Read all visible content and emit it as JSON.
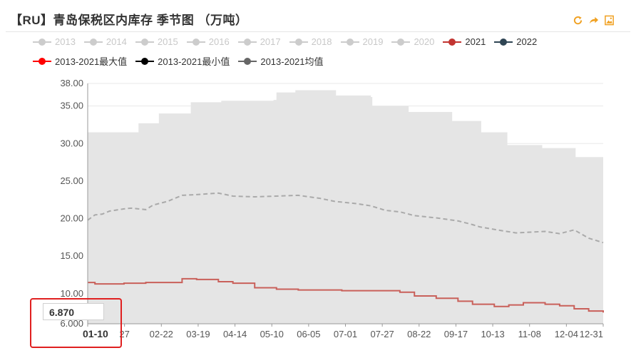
{
  "title": "【RU】青岛保税区内库存 季节图 （万吨）",
  "toolbar": {
    "refresh_icon": "refresh-icon",
    "share_icon": "share-icon",
    "download_icon": "image-download-icon"
  },
  "legend_row1": [
    {
      "label": "2013",
      "active": false,
      "color": "#cccccc"
    },
    {
      "label": "2014",
      "active": false,
      "color": "#cccccc"
    },
    {
      "label": "2015",
      "active": false,
      "color": "#cccccc"
    },
    {
      "label": "2016",
      "active": false,
      "color": "#cccccc"
    },
    {
      "label": "2017",
      "active": false,
      "color": "#cccccc"
    },
    {
      "label": "2018",
      "active": false,
      "color": "#cccccc"
    },
    {
      "label": "2019",
      "active": false,
      "color": "#cccccc"
    },
    {
      "label": "2020",
      "active": false,
      "color": "#cccccc"
    },
    {
      "label": "2021",
      "active": true,
      "color": "#c23531"
    },
    {
      "label": "2022",
      "active": true,
      "color": "#2f4554"
    }
  ],
  "legend_row2": [
    {
      "label": "2013-2021最大值",
      "active": true,
      "color": "#ff0000"
    },
    {
      "label": "2013-2021最小值",
      "active": true,
      "color": "#000000"
    },
    {
      "label": "2013-2021均值",
      "active": true,
      "color": "#666666"
    }
  ],
  "tooltip_value": "6.870",
  "chart_data": {
    "type": "area",
    "title": "【RU】青岛保税区内库存 季节图 （万吨）",
    "ylim": [
      6,
      38
    ],
    "y_ticks": [
      "6.000",
      "10.00",
      "15.00",
      "20.00",
      "25.00",
      "30.00",
      "35.00",
      "38.00"
    ],
    "y_tick_values": [
      6,
      10,
      15,
      20,
      25,
      30,
      35,
      38
    ],
    "x_ticks": [
      "01-10",
      "27",
      "02-22",
      "03-19",
      "04-14",
      "05-10",
      "06-05",
      "07-01",
      "07-27",
      "08-22",
      "09-17",
      "10-13",
      "11-08",
      "12-04",
      "12-31"
    ],
    "grid": true,
    "legend_position": "top",
    "colors": {
      "band": "#e5e5e5",
      "y2021": "#c9605a",
      "mean": "#aaaaaa"
    },
    "x_index": [
      0,
      1,
      2,
      3,
      4,
      5,
      6,
      7,
      8,
      9,
      10,
      11,
      12,
      13,
      14,
      15,
      16,
      17,
      18,
      19,
      20,
      21,
      22,
      23,
      24,
      25,
      26,
      27,
      28,
      29,
      30,
      31,
      32,
      33,
      34,
      35,
      36,
      37,
      38,
      39,
      40,
      41,
      42,
      43,
      44,
      45,
      46,
      47,
      48,
      49,
      50,
      51,
      52,
      53,
      54,
      55,
      56,
      57,
      58,
      59,
      60,
      61,
      62,
      63,
      64,
      65,
      66,
      67,
      68,
      69,
      70,
      71,
      72,
      73,
      74,
      75,
      76,
      77,
      78,
      79,
      80,
      81,
      82,
      83,
      84,
      85,
      86,
      87,
      88,
      89,
      90,
      91,
      92,
      93,
      94,
      95,
      96,
      97,
      98,
      99,
      100,
      101,
      102,
      103,
      104,
      105,
      106,
      107,
      108,
      109,
      110,
      111,
      112,
      113,
      114,
      115,
      116,
      117,
      118,
      119,
      120,
      121,
      122,
      123,
      124,
      125,
      126,
      127,
      128,
      129,
      130,
      131,
      132,
      133,
      134,
      135,
      136,
      137,
      138,
      139,
      140,
      141,
      142,
      143,
      144,
      145,
      146,
      147,
      148,
      149,
      150,
      151,
      152,
      153,
      154,
      155,
      156,
      157,
      158,
      159,
      160,
      161,
      162,
      163,
      164,
      165,
      166,
      167,
      168,
      169,
      170,
      171,
      172,
      173,
      174,
      175,
      176,
      177,
      178,
      179,
      180,
      181,
      182,
      183,
      184,
      185,
      186,
      187,
      188,
      189,
      190,
      191,
      192,
      193,
      194,
      195,
      196,
      197,
      198,
      199,
      200,
      201,
      202,
      203,
      204,
      205,
      206,
      207,
      208,
      209,
      210,
      211,
      212,
      213,
      214,
      215,
      216,
      217,
      218,
      219,
      220,
      221,
      222,
      223,
      224,
      225,
      226,
      227,
      228,
      229,
      230,
      231,
      232,
      233,
      234,
      235,
      236,
      237,
      238,
      239,
      240,
      241,
      242,
      243,
      244,
      245,
      246,
      247,
      248,
      249,
      250,
      251,
      252,
      253,
      254,
      255,
      256,
      257,
      258,
      259,
      260,
      261,
      262,
      263,
      264,
      265,
      266,
      267,
      268,
      269,
      270,
      271,
      272,
      273,
      274,
      275,
      276,
      277,
      278,
      279,
      280,
      281,
      282,
      283,
      284,
      285,
      286,
      287,
      288,
      289,
      290,
      291,
      292,
      293,
      294,
      295,
      296,
      297,
      298,
      299,
      300,
      301,
      302,
      303,
      304,
      305,
      306,
      307,
      308,
      309,
      310,
      311,
      312,
      313,
      314,
      315,
      316,
      317,
      318,
      319,
      320,
      321,
      322,
      323,
      324,
      325,
      326,
      327,
      328,
      329,
      330,
      331,
      332,
      333,
      334,
      335,
      336,
      337,
      338,
      339,
      340,
      341,
      342,
      343,
      344,
      345,
      346,
      347,
      348,
      349,
      350,
      351,
      352,
      353,
      354,
      355
    ],
    "max": [
      [
        0,
        31.5
      ],
      [
        14,
        31.5
      ],
      [
        15,
        31.5
      ],
      [
        35,
        32.7
      ],
      [
        48,
        32.7
      ],
      [
        49,
        34.0
      ],
      [
        70,
        34.0
      ],
      [
        71,
        35.5
      ],
      [
        91,
        35.5
      ],
      [
        92,
        35.7
      ],
      [
        128,
        35.8
      ],
      [
        130,
        36.8
      ],
      [
        143,
        37.1
      ],
      [
        170,
        37.1
      ],
      [
        171,
        36.4
      ],
      [
        195,
        36.2
      ],
      [
        196,
        35.0
      ],
      [
        220,
        35.0
      ],
      [
        221,
        34.2
      ],
      [
        250,
        34.2
      ],
      [
        251,
        33.0
      ],
      [
        270,
        33.0
      ],
      [
        271,
        31.5
      ],
      [
        288,
        31.5
      ],
      [
        289,
        29.8
      ],
      [
        312,
        29.8
      ],
      [
        313,
        29.4
      ],
      [
        335,
        29.4
      ],
      [
        336,
        28.2
      ],
      [
        355,
        28.2
      ]
    ],
    "min_band_bottom": 6.0,
    "mean": [
      [
        0,
        19.8
      ],
      [
        5,
        20.5
      ],
      [
        10,
        20.6
      ],
      [
        15,
        21.0
      ],
      [
        25,
        21.3
      ],
      [
        30,
        21.4
      ],
      [
        40,
        21.2
      ],
      [
        45,
        21.8
      ],
      [
        55,
        22.3
      ],
      [
        65,
        23.1
      ],
      [
        75,
        23.2
      ],
      [
        90,
        23.4
      ],
      [
        100,
        23.0
      ],
      [
        115,
        22.9
      ],
      [
        130,
        23.0
      ],
      [
        145,
        23.1
      ],
      [
        160,
        22.7
      ],
      [
        170,
        22.3
      ],
      [
        185,
        22.0
      ],
      [
        195,
        21.7
      ],
      [
        205,
        21.1
      ],
      [
        215,
        20.9
      ],
      [
        225,
        20.4
      ],
      [
        240,
        20.1
      ],
      [
        255,
        19.7
      ],
      [
        265,
        19.2
      ],
      [
        270,
        18.9
      ],
      [
        285,
        18.4
      ],
      [
        295,
        18.1
      ],
      [
        305,
        18.2
      ],
      [
        315,
        18.3
      ],
      [
        325,
        18.0
      ],
      [
        335,
        18.5
      ],
      [
        345,
        17.4
      ],
      [
        355,
        16.8
      ]
    ],
    "series": [
      {
        "name": "2021",
        "values": [
          [
            0,
            11.5
          ],
          [
            5,
            11.3
          ],
          [
            15,
            11.3
          ],
          [
            25,
            11.4
          ],
          [
            40,
            11.5
          ],
          [
            60,
            11.5
          ],
          [
            65,
            12.0
          ],
          [
            75,
            11.9
          ],
          [
            90,
            11.6
          ],
          [
            100,
            11.4
          ],
          [
            115,
            10.8
          ],
          [
            130,
            10.6
          ],
          [
            145,
            10.5
          ],
          [
            160,
            10.5
          ],
          [
            175,
            10.4
          ],
          [
            185,
            10.4
          ],
          [
            195,
            10.4
          ],
          [
            205,
            10.4
          ],
          [
            215,
            10.2
          ],
          [
            225,
            9.7
          ],
          [
            240,
            9.4
          ],
          [
            255,
            9.0
          ],
          [
            265,
            8.6
          ],
          [
            280,
            8.3
          ],
          [
            290,
            8.5
          ],
          [
            300,
            8.8
          ],
          [
            315,
            8.6
          ],
          [
            325,
            8.4
          ],
          [
            335,
            8.0
          ],
          [
            345,
            7.7
          ],
          [
            355,
            7.5
          ]
        ]
      }
    ]
  }
}
